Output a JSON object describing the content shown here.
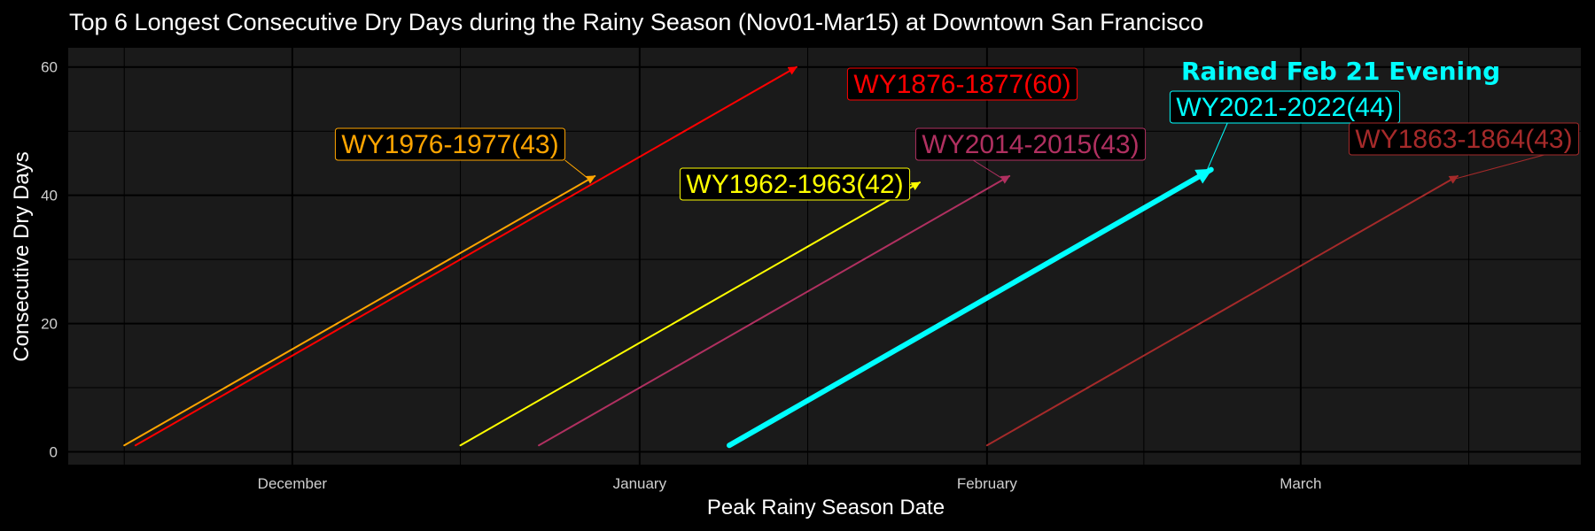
{
  "chart_data": {
    "type": "line",
    "title": "Top 6 Longest Consecutive Dry Days during the Rainy Season (Nov01-Mar15) at Downtown San Francisco",
    "xlabel": "Peak Rainy Season Date",
    "ylabel": "Consecutive Dry Days",
    "x_unit": "date",
    "xlim": [
      "Nov 11",
      "Mar 26"
    ],
    "ylim": [
      -2,
      63
    ],
    "x_ticks": [
      {
        "date": "Dec 1",
        "label": "December"
      },
      {
        "date": "Jan 1",
        "label": "January"
      },
      {
        "date": "Feb 1",
        "label": "February"
      },
      {
        "date": "Mar 1",
        "label": "March"
      }
    ],
    "y_ticks": [
      0,
      20,
      40,
      60
    ],
    "grid": true,
    "legend": "none",
    "series": [
      {
        "name": "WY1976-1977(43)",
        "start": "Nov 16",
        "end": "Dec 28",
        "start_value": 1,
        "end_value": 43,
        "color": "#ffa500",
        "label": "WY1976-1977(43)"
      },
      {
        "name": "WY1876-1877(60)",
        "start": "Nov 17",
        "end": "Jan 15",
        "start_value": 1,
        "end_value": 60,
        "color": "#ff0000",
        "label": "WY1876-1877(60)"
      },
      {
        "name": "WY1962-1963(42)",
        "start": "Dec 16",
        "end": "Jan 26",
        "start_value": 1,
        "end_value": 42,
        "color": "#ffff00",
        "label": "WY1962-1963(42)"
      },
      {
        "name": "WY2014-2015(43)",
        "start": "Dec 23",
        "end": "Feb 3",
        "start_value": 1,
        "end_value": 43,
        "color": "#b03060",
        "label": "WY2014-2015(43)"
      },
      {
        "name": "WY2021-2022(44)",
        "start": "Jan 9",
        "end": "Feb 21",
        "start_value": 1,
        "end_value": 44,
        "color": "#00ffff",
        "label": "WY2021-2022(44)"
      },
      {
        "name": "WY1863-1864(43)",
        "start": "Feb 1",
        "end": "Mar 15",
        "start_value": 1,
        "end_value": 43,
        "color": "#a52a2a",
        "label": "WY1863-1864(43)"
      }
    ],
    "annotations": [
      {
        "text": "Rained Feb 21 Evening",
        "color": "#00ffff"
      }
    ]
  }
}
